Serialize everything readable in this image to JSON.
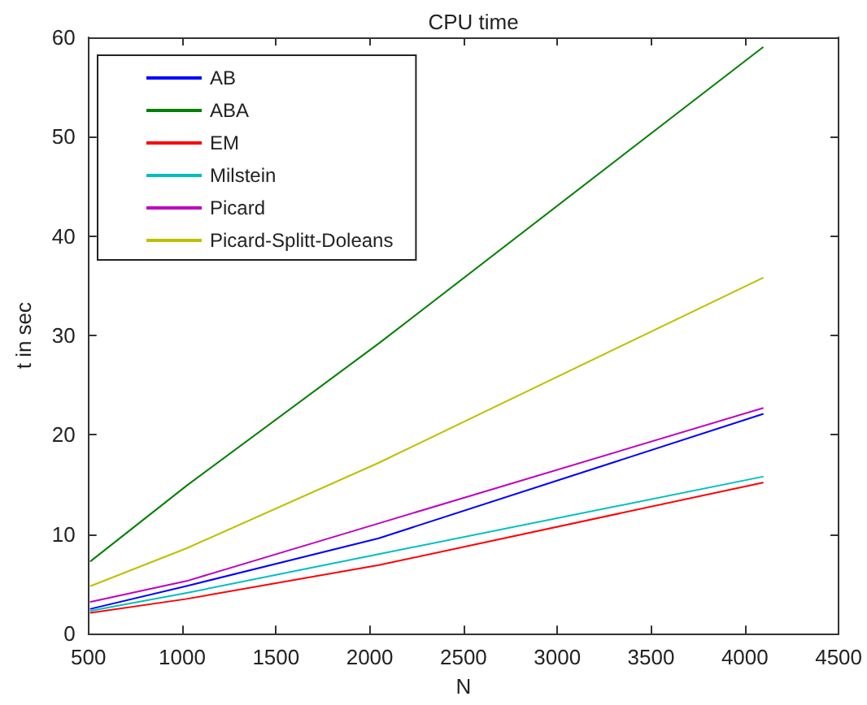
{
  "chart_data": {
    "type": "line",
    "title": "CPU time",
    "xlabel": "N",
    "ylabel": "t in sec",
    "x": [
      512,
      1024,
      2048,
      4096
    ],
    "xlim": [
      500,
      4500
    ],
    "xticks": [
      500,
      1000,
      1500,
      2000,
      2500,
      3000,
      3500,
      4000,
      4500
    ],
    "ylim": [
      0,
      60
    ],
    "yticks": [
      0,
      10,
      20,
      30,
      40,
      50,
      60
    ],
    "grid": false,
    "legend": "top left",
    "marker": "none",
    "line_style": "solid",
    "series": [
      {
        "name": "AB",
        "color": "#0000ff",
        "values": [
          2.5,
          4.8,
          9.6,
          22.1
        ]
      },
      {
        "name": "ABA",
        "color": "#008000",
        "values": [
          7.3,
          14.9,
          29.2,
          59
        ]
      },
      {
        "name": "EM",
        "color": "#ff0000",
        "values": [
          2.1,
          3.5,
          6.9,
          15.2
        ]
      },
      {
        "name": "Milstein",
        "color": "#00bfbf",
        "values": [
          2.3,
          4.1,
          8.0,
          15.8
        ]
      },
      {
        "name": "Picard",
        "color": "#bf00bf",
        "values": [
          3.2,
          5.3,
          11.1,
          22.7
        ]
      },
      {
        "name": "Picard-Splitt-Doleans",
        "color": "#bfbf00",
        "values": [
          4.8,
          8.6,
          17.2,
          35.8
        ]
      }
    ]
  }
}
